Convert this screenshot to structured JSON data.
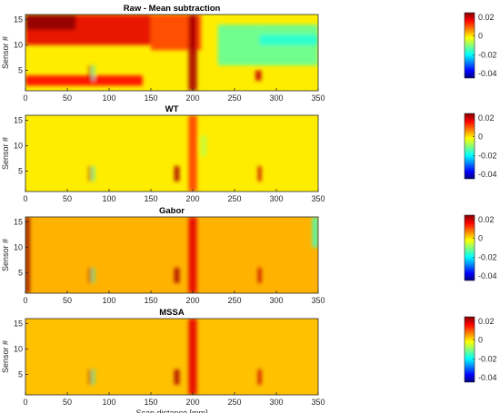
{
  "chart_data": [
    {
      "type": "heatmap",
      "title": "Raw - Mean subtraction",
      "ylabel": "Sensor #",
      "xlabel": "",
      "xlim": [
        0,
        350
      ],
      "ylim": [
        1,
        16
      ],
      "xticks": [
        0,
        50,
        100,
        150,
        200,
        250,
        300,
        350
      ],
      "yticks": [
        5,
        10,
        15
      ],
      "clim": [
        -0.045,
        0.025
      ],
      "colorbar_ticks": [
        0.02,
        0,
        -0.02,
        -0.04
      ],
      "colorbar_labels": [
        "0.02",
        "0",
        "-0.02",
        "-0.04"
      ],
      "colormap": "jet",
      "background_value": 0.0,
      "features": [
        {
          "x": [
            0,
            150
          ],
          "y": [
            10,
            16
          ],
          "value": 0.018
        },
        {
          "x": [
            0,
            60
          ],
          "y": [
            13,
            16
          ],
          "value": 0.024
        },
        {
          "x": [
            150,
            210
          ],
          "y": [
            9,
            16
          ],
          "value": 0.012
        },
        {
          "x": [
            230,
            350
          ],
          "y": [
            6,
            14
          ],
          "value": -0.012
        },
        {
          "x": [
            280,
            350
          ],
          "y": [
            10,
            12
          ],
          "value": -0.016
        },
        {
          "x": [
            0,
            140
          ],
          "y": [
            2,
            4
          ],
          "value": 0.016
        },
        {
          "x": [
            195,
            205
          ],
          "y": [
            1,
            16
          ],
          "value": 0.022
        },
        {
          "x": [
            76,
            78
          ],
          "y": [
            3,
            6
          ],
          "value": 0.024
        },
        {
          "x": [
            80,
            82
          ],
          "y": [
            3,
            6
          ],
          "value": -0.02
        },
        {
          "x": [
            275,
            282
          ],
          "y": [
            3,
            5
          ],
          "value": 0.02
        }
      ]
    },
    {
      "type": "heatmap",
      "title": "WT",
      "ylabel": "Sensor #",
      "xlabel": "",
      "xlim": [
        0,
        350
      ],
      "ylim": [
        1,
        16
      ],
      "xticks": [
        0,
        50,
        100,
        150,
        200,
        250,
        300,
        350
      ],
      "yticks": [
        5,
        10,
        15
      ],
      "clim": [
        -0.045,
        0.025
      ],
      "colorbar_ticks": [
        0.02,
        0,
        -0.02,
        -0.04
      ],
      "colorbar_labels": [
        "0.02",
        "0",
        "-0.02",
        "-0.04"
      ],
      "colormap": "jet",
      "background_value": 0.0,
      "features": [
        {
          "x": [
            195,
            205
          ],
          "y": [
            1,
            16
          ],
          "value": 0.012
        },
        {
          "x": [
            76,
            78
          ],
          "y": [
            3,
            6
          ],
          "value": 0.024
        },
        {
          "x": [
            80,
            82
          ],
          "y": [
            3,
            6
          ],
          "value": -0.02
        },
        {
          "x": [
            178,
            184
          ],
          "y": [
            3,
            6
          ],
          "value": 0.022
        },
        {
          "x": [
            278,
            282
          ],
          "y": [
            3,
            6
          ],
          "value": 0.02
        },
        {
          "x": [
            210,
            216
          ],
          "y": [
            8,
            12
          ],
          "value": -0.006
        }
      ]
    },
    {
      "type": "heatmap",
      "title": "Gabor",
      "ylabel": "Sensor #",
      "xlabel": "",
      "xlim": [
        0,
        350
      ],
      "ylim": [
        1,
        16
      ],
      "xticks": [
        0,
        50,
        100,
        150,
        200,
        250,
        300,
        350
      ],
      "yticks": [
        5,
        10,
        15
      ],
      "clim": [
        -0.045,
        0.025
      ],
      "colorbar_ticks": [
        0.02,
        0,
        -0.02,
        -0.04
      ],
      "colorbar_labels": [
        "0.02",
        "0",
        "-0.02",
        "-0.04"
      ],
      "colormap": "jet",
      "background_value": 0.004,
      "features": [
        {
          "x": [
            0,
            5
          ],
          "y": [
            1,
            16
          ],
          "value": 0.024
        },
        {
          "x": [
            343,
            350
          ],
          "y": [
            10,
            16
          ],
          "value": -0.014
        },
        {
          "x": [
            195,
            205
          ],
          "y": [
            1,
            16
          ],
          "value": 0.018
        },
        {
          "x": [
            76,
            78
          ],
          "y": [
            3,
            6
          ],
          "value": 0.024
        },
        {
          "x": [
            80,
            82
          ],
          "y": [
            3,
            6
          ],
          "value": -0.02
        },
        {
          "x": [
            178,
            184
          ],
          "y": [
            3,
            6
          ],
          "value": 0.022
        },
        {
          "x": [
            278,
            282
          ],
          "y": [
            3,
            6
          ],
          "value": 0.02
        }
      ]
    },
    {
      "type": "heatmap",
      "title": "MSSA",
      "ylabel": "Sensor #",
      "xlabel": "Scan distance [mm]",
      "xlim": [
        0,
        350
      ],
      "ylim": [
        1,
        16
      ],
      "xticks": [
        0,
        50,
        100,
        150,
        200,
        250,
        300,
        350
      ],
      "yticks": [
        5,
        10,
        15
      ],
      "clim": [
        -0.045,
        0.025
      ],
      "colorbar_ticks": [
        0.02,
        0,
        -0.02,
        -0.04
      ],
      "colorbar_labels": [
        "0.02",
        "0",
        "-0.02",
        "-0.04"
      ],
      "colormap": "jet",
      "background_value": 0.003,
      "features": [
        {
          "x": [
            195,
            205
          ],
          "y": [
            1,
            16
          ],
          "value": 0.018
        },
        {
          "x": [
            76,
            78
          ],
          "y": [
            3,
            6
          ],
          "value": 0.024
        },
        {
          "x": [
            80,
            82
          ],
          "y": [
            3,
            6
          ],
          "value": -0.02
        },
        {
          "x": [
            178,
            184
          ],
          "y": [
            3,
            6
          ],
          "value": 0.022
        },
        {
          "x": [
            278,
            282
          ],
          "y": [
            3,
            6
          ],
          "value": 0.02
        }
      ]
    }
  ]
}
